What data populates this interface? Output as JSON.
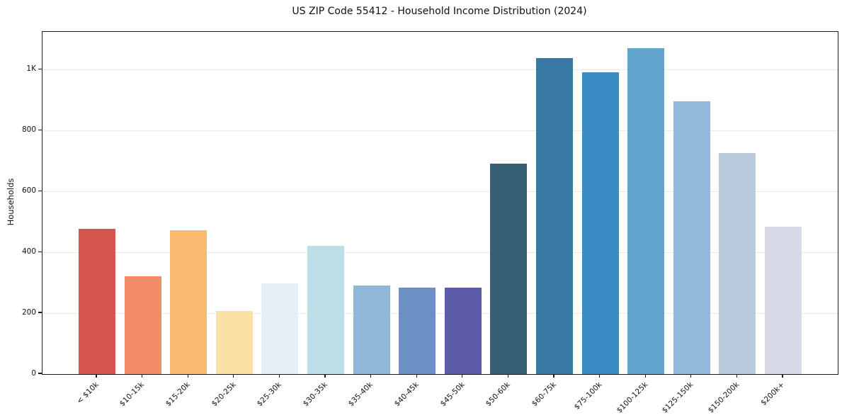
{
  "title": "US ZIP Code 55412 - Household Income Distribution (2024)",
  "chart_data": {
    "type": "bar",
    "title": "US ZIP Code 55412 - Household Income Distribution (2024)",
    "xlabel": "",
    "ylabel": "Households",
    "categories": [
      "< $10k",
      "$10-15k",
      "$15-20k",
      "$20-25k",
      "$25-30k",
      "$30-35k",
      "$35-40k",
      "$40-45k",
      "$45-50k",
      "$50-60k",
      "$60-75k",
      "$75-100k",
      "$100-125k",
      "$125-150k",
      "$150-200k",
      "$200k+"
    ],
    "values": [
      478,
      322,
      473,
      207,
      298,
      422,
      291,
      284,
      285,
      692,
      1037,
      992,
      1070,
      896,
      727,
      484
    ],
    "bar_colors": [
      "#d7554f",
      "#f28b6a",
      "#f9b96f",
      "#fce1a4",
      "#e4f0f4",
      "#bedfe8",
      "#8fb8d8",
      "#6c8fc4",
      "#5c5ba8",
      "#365f74",
      "#3779a1",
      "#3a8cc4",
      "#62a6cd",
      "#93b9da",
      "#bccade",
      "#d8dae7"
    ],
    "ylim": [
      0,
      1124
    ],
    "yticks": [
      {
        "value": 0,
        "label": "0"
      },
      {
        "value": 200,
        "label": "200"
      },
      {
        "value": 400,
        "label": "400"
      },
      {
        "value": 600,
        "label": "600"
      },
      {
        "value": 800,
        "label": "800"
      },
      {
        "value": 1000,
        "label": "1K"
      }
    ],
    "grid": "horizontal",
    "grid_color": "#e9e9e9",
    "legend": "none",
    "background": "#ffffff",
    "spine_color": "#1c1c1c"
  }
}
